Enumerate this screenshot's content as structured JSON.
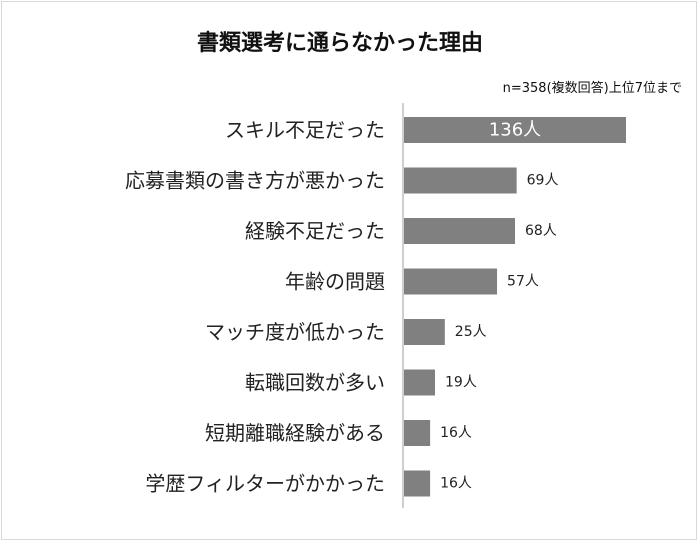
{
  "chart_data": {
    "type": "bar",
    "orientation": "horizontal",
    "title": "書類選考に通らなかった理由",
    "note": "n=358(複数回答)上位7位まで",
    "categories": [
      "スキル不足だった",
      "応募書類の書き方が悪かった",
      "経験不足だった",
      "年齢の問題",
      "マッチ度が低かった",
      "転職回数が多い",
      "短期離職経験がある",
      "学歴フィルターがかかった"
    ],
    "values": [
      136,
      69,
      68,
      57,
      25,
      19,
      16,
      16
    ],
    "value_labels": [
      "136人",
      "69人",
      "68人",
      "57人",
      "25人",
      "19人",
      "16人",
      "16人"
    ],
    "xlim": [
      0,
      136
    ],
    "bar_color": "#808080",
    "axis_color": "#bfbfbf"
  }
}
